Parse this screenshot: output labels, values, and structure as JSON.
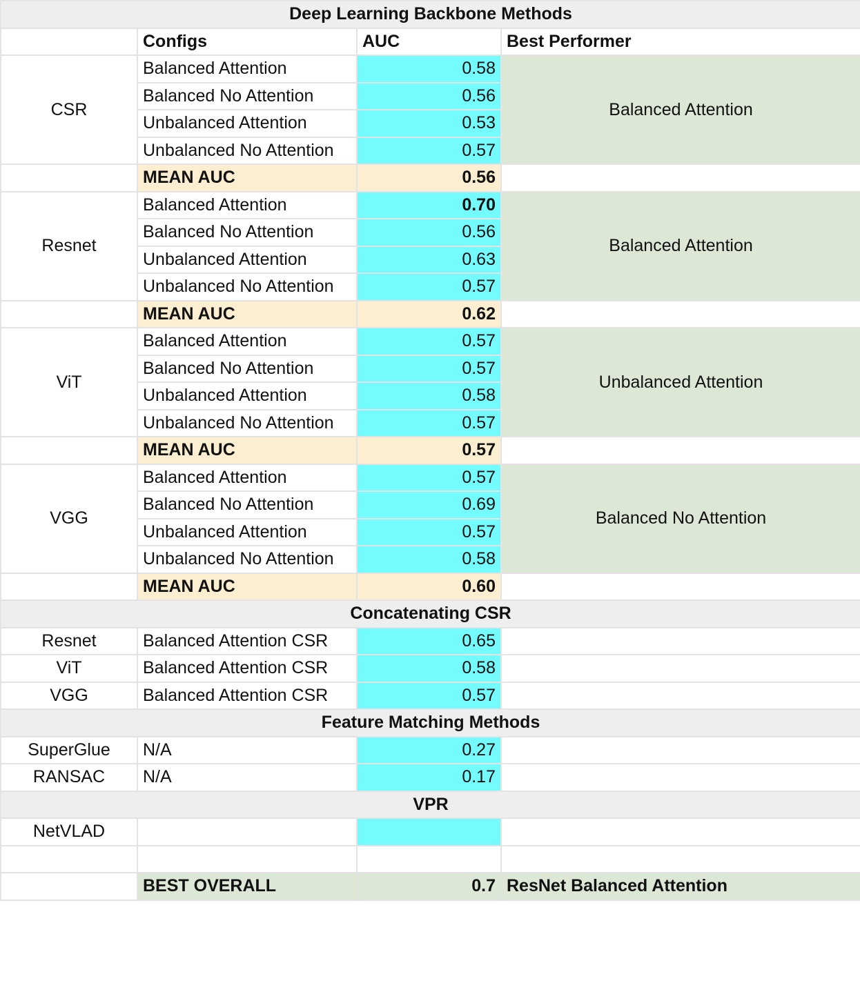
{
  "title": "Deep Learning Backbone Methods",
  "headers": {
    "configs": "Configs",
    "auc": "AUC",
    "best_performer": "Best Performer"
  },
  "mean_label": "MEAN AUC",
  "groups": [
    {
      "name": "CSR",
      "rows": [
        {
          "config": "Balanced Attention",
          "auc": "0.58"
        },
        {
          "config": "Balanced No Attention",
          "auc": "0.56"
        },
        {
          "config": "Unbalanced Attention",
          "auc": "0.53"
        },
        {
          "config": "Unbalanced No Attention",
          "auc": "0.57"
        }
      ],
      "best": "Balanced Attention",
      "mean": "0.56"
    },
    {
      "name": "Resnet",
      "rows": [
        {
          "config": "Balanced Attention",
          "auc": "0.70"
        },
        {
          "config": "Balanced No Attention",
          "auc": "0.56"
        },
        {
          "config": "Unbalanced Attention",
          "auc": "0.63"
        },
        {
          "config": "Unbalanced No Attention",
          "auc": "0.57"
        }
      ],
      "best": "Balanced Attention",
      "mean": "0.62"
    },
    {
      "name": "ViT",
      "rows": [
        {
          "config": "Balanced Attention",
          "auc": "0.57"
        },
        {
          "config": "Balanced No Attention",
          "auc": "0.57"
        },
        {
          "config": "Unbalanced Attention",
          "auc": "0.58"
        },
        {
          "config": "Unbalanced No Attention",
          "auc": "0.57"
        }
      ],
      "best": "Unbalanced Attention",
      "mean": "0.57"
    },
    {
      "name": "VGG",
      "rows": [
        {
          "config": "Balanced Attention",
          "auc": "0.57"
        },
        {
          "config": "Balanced No Attention",
          "auc": "0.69"
        },
        {
          "config": "Unbalanced Attention",
          "auc": "0.57"
        },
        {
          "config": "Unbalanced No Attention",
          "auc": "0.58"
        }
      ],
      "best": "Balanced No Attention",
      "mean": "0.60"
    }
  ],
  "concat": {
    "title": "Concatenating CSR",
    "rows": [
      {
        "method": "Resnet",
        "config": "Balanced Attention CSR",
        "auc": "0.65"
      },
      {
        "method": "ViT",
        "config": "Balanced Attention CSR",
        "auc": "0.58"
      },
      {
        "method": "VGG",
        "config": "Balanced Attention CSR",
        "auc": "0.57"
      }
    ]
  },
  "feature": {
    "title": "Feature Matching Methods",
    "rows": [
      {
        "method": "SuperGlue",
        "config": "N/A",
        "auc": "0.27"
      },
      {
        "method": "RANSAC",
        "config": "N/A",
        "auc": "0.17"
      }
    ]
  },
  "vpr": {
    "title": "VPR",
    "rows": [
      {
        "method": "NetVLAD",
        "config": "",
        "auc": ""
      }
    ]
  },
  "best_overall": {
    "label": "BEST OVERALL",
    "value": "0.7",
    "method": "ResNet Balanced Attention"
  }
}
